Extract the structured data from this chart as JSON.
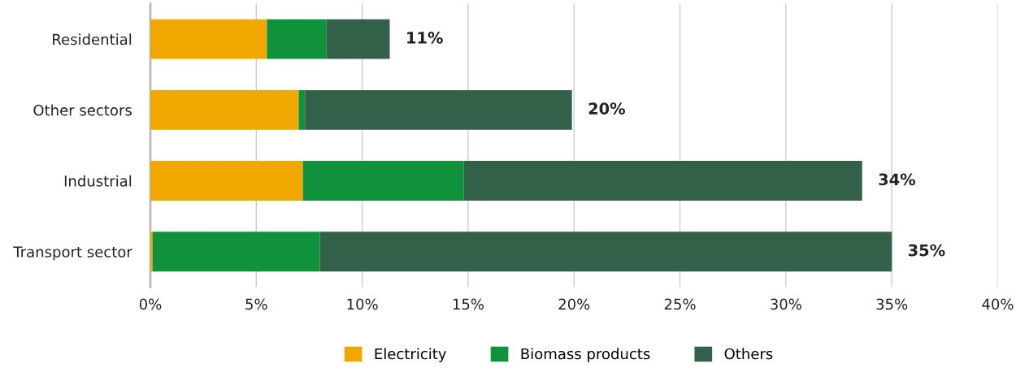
{
  "chart_data": {
    "type": "bar",
    "orientation": "horizontal",
    "stacked": true,
    "categories": [
      "Residential",
      "Other sectors",
      "Industrial",
      "Transport sector"
    ],
    "series": [
      {
        "name": "Electricity",
        "color": "#f0a800",
        "values": [
          5.5,
          7.0,
          7.2,
          0.1
        ]
      },
      {
        "name": "Biomass products",
        "color": "#10913b",
        "values": [
          2.8,
          0.3,
          7.6,
          7.9
        ]
      },
      {
        "name": "Others",
        "color": "#336049",
        "values": [
          3.0,
          12.6,
          18.8,
          27.0
        ]
      }
    ],
    "totals": [
      "11%",
      "20%",
      "34%",
      "35%"
    ],
    "xlim": [
      0,
      40
    ],
    "xticks": [
      {
        "value": 0,
        "label": "0%"
      },
      {
        "value": 5,
        "label": "5%"
      },
      {
        "value": 10,
        "label": "10%"
      },
      {
        "value": 15,
        "label": "15%"
      },
      {
        "value": 20,
        "label": "20%"
      },
      {
        "value": 25,
        "label": "25%"
      },
      {
        "value": 30,
        "label": "30%"
      },
      {
        "value": 35,
        "label": "35%"
      },
      {
        "value": 40,
        "label": "40%"
      }
    ],
    "grid": "x",
    "legend": "bottom"
  }
}
